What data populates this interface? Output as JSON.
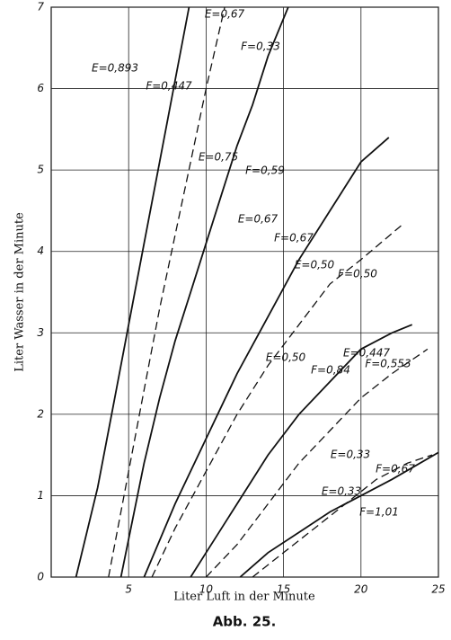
{
  "chart_data": {
    "type": "line",
    "x_label": "Liter Luft in der Minute",
    "y_label": "Liter Wasser in der Minute",
    "caption": "Abb. 25.",
    "xlim": [
      0,
      25
    ],
    "xticks": [
      5,
      10,
      15,
      20,
      25
    ],
    "ylim": [
      0,
      7
    ],
    "yticks": [
      0,
      1,
      2,
      3,
      4,
      5,
      6,
      7
    ],
    "grid": true,
    "series": [
      {
        "e_label": "E=0,893",
        "f_label": "F=0,447",
        "color": "#111",
        "dashed": false,
        "x": [
          1.6,
          3,
          4,
          5,
          6,
          7,
          8,
          8.9
        ],
        "values": [
          0,
          1.1,
          2.1,
          3.1,
          4.1,
          5.1,
          6.1,
          7
        ]
      },
      {
        "e_label": "E=0,67",
        "f_label": "F=0,33",
        "color": "#111",
        "dashed": true,
        "x": [
          3.7,
          5,
          6,
          7,
          8,
          9,
          10,
          11.2
        ],
        "values": [
          0,
          1.3,
          2.3,
          3.3,
          4.2,
          5.1,
          6,
          7
        ]
      },
      {
        "e_label": "E=0,75",
        "f_label": "F=0,59",
        "color": "#111",
        "dashed": false,
        "x": [
          4.5,
          6,
          7,
          8,
          9,
          10,
          11,
          12,
          13,
          14,
          15.3
        ],
        "values": [
          0,
          1.4,
          2.2,
          2.9,
          3.5,
          4.1,
          4.7,
          5.3,
          5.8,
          6.4,
          7
        ]
      },
      {
        "e_label": "E=0,67",
        "f_label": "F=0,67",
        "color": "#111",
        "dashed": false,
        "x": [
          6,
          8,
          10,
          12,
          14,
          16,
          18,
          20,
          21.8
        ],
        "values": [
          0,
          0.9,
          1.7,
          2.5,
          3.2,
          3.9,
          4.5,
          5.1,
          5.4
        ]
      },
      {
        "e_label": "E=0,50",
        "f_label": "F=0,50",
        "color": "#111",
        "dashed": true,
        "x": [
          6.5,
          8,
          10,
          12,
          14,
          16,
          18,
          20,
          22.8
        ],
        "values": [
          0,
          0.6,
          1.3,
          2,
          2.6,
          3.1,
          3.6,
          3.9,
          4.35
        ]
      },
      {
        "e_label": "E=0,50",
        "f_label": "F=0,84",
        "color": "#111",
        "dashed": false,
        "x": [
          9,
          10,
          12,
          14,
          16,
          18,
          20,
          22,
          23.3
        ],
        "values": [
          0,
          0.3,
          0.9,
          1.5,
          2,
          2.4,
          2.8,
          3,
          3.1
        ]
      },
      {
        "e_label": "E=0,447",
        "f_label": "F=0,553",
        "color": "#111",
        "dashed": true,
        "x": [
          10,
          12,
          14,
          16,
          18,
          20,
          22,
          24.3
        ],
        "values": [
          0,
          0.4,
          0.9,
          1.4,
          1.8,
          2.2,
          2.5,
          2.8
        ]
      },
      {
        "e_label": "E=0,33",
        "f_label": "F=0,67",
        "color": "#111",
        "dashed": true,
        "x": [
          13,
          15,
          17,
          19,
          21,
          23,
          24.6
        ],
        "values": [
          0,
          0.3,
          0.6,
          0.9,
          1.2,
          1.4,
          1.5
        ]
      },
      {
        "e_label": "E=0,33",
        "f_label": "F=1,01",
        "color": "#111",
        "dashed": false,
        "x": [
          12.2,
          14,
          16,
          18,
          20,
          22,
          25
        ],
        "values": [
          0,
          0.3,
          0.55,
          0.8,
          1,
          1.2,
          1.53
        ]
      }
    ]
  }
}
